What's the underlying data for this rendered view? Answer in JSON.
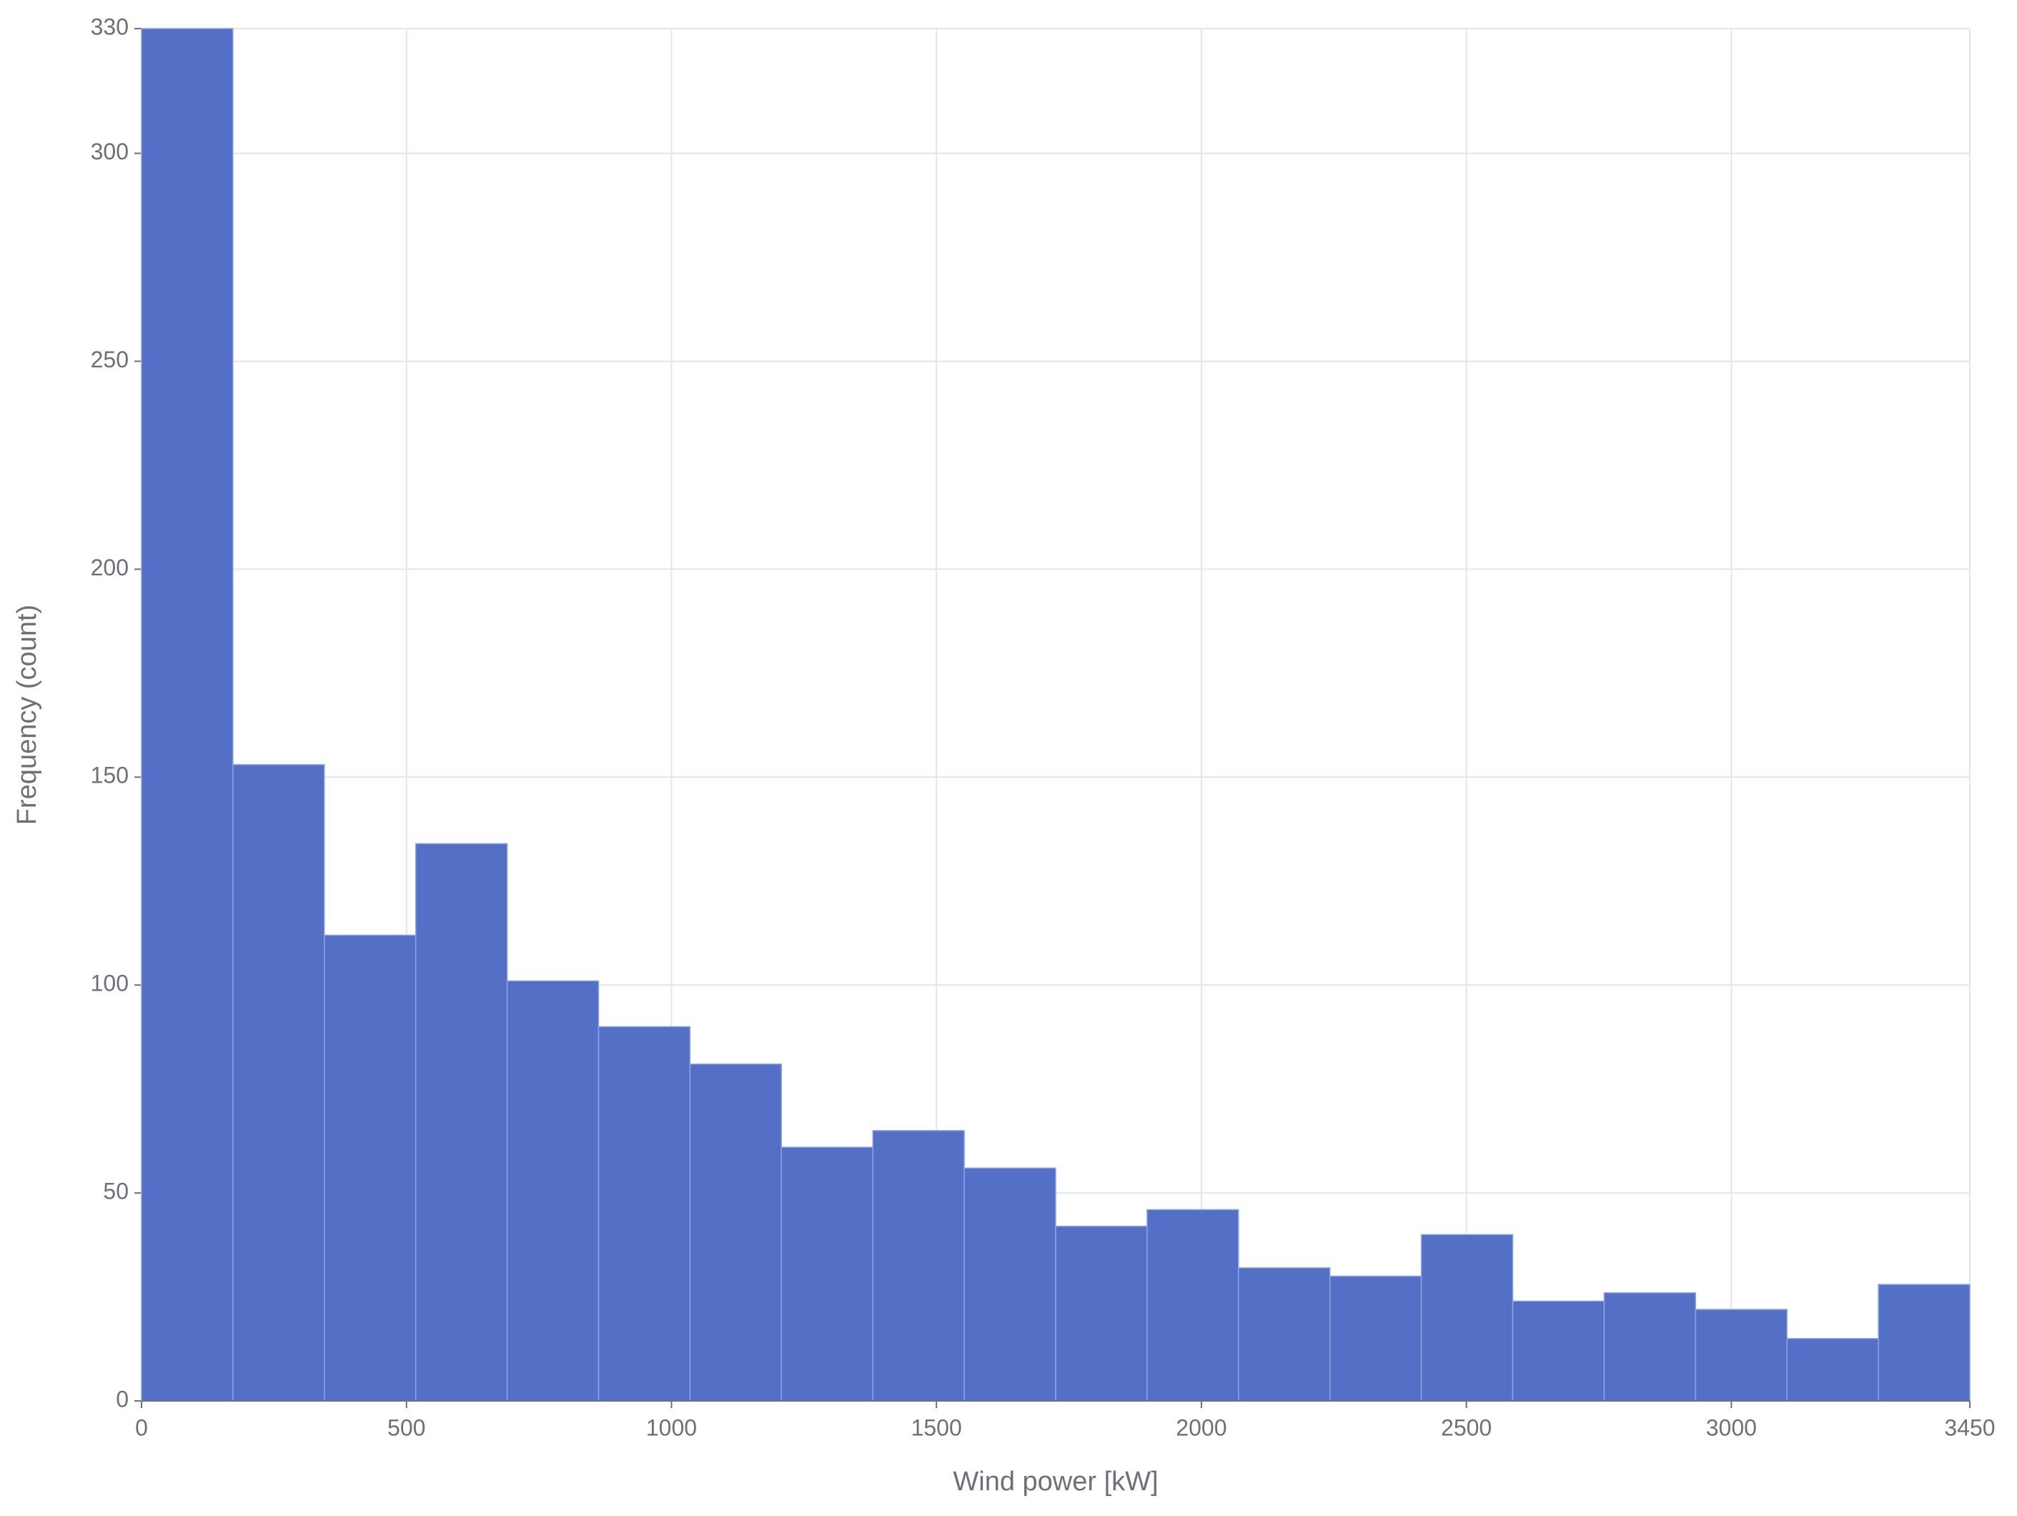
{
  "chart_data": {
    "type": "histogram",
    "x_label": "Wind power [kW]",
    "y_label": "Frequency (count)",
    "bins": [
      0,
      172.5,
      345,
      517.5,
      690,
      862.5,
      1035,
      1207.5,
      1380,
      1552.5,
      1725,
      1897.5,
      2070,
      2242.5,
      2415,
      2587.5,
      2760,
      2932.5,
      3105,
      3277.5,
      3450
    ],
    "values": [
      330,
      153,
      112,
      134,
      101,
      90,
      81,
      61,
      65,
      56,
      42,
      46,
      32,
      30,
      40,
      24,
      26,
      22,
      15,
      28
    ],
    "color": "#5470c6",
    "xlim": [
      0,
      3450
    ],
    "xticks": [
      0,
      500,
      1000,
      1500,
      2000,
      2500,
      3000,
      3450
    ],
    "ylim": [
      0,
      330
    ],
    "yticks": [
      0,
      50,
      100,
      150,
      200,
      250,
      300,
      330
    ],
    "grid": true
  }
}
